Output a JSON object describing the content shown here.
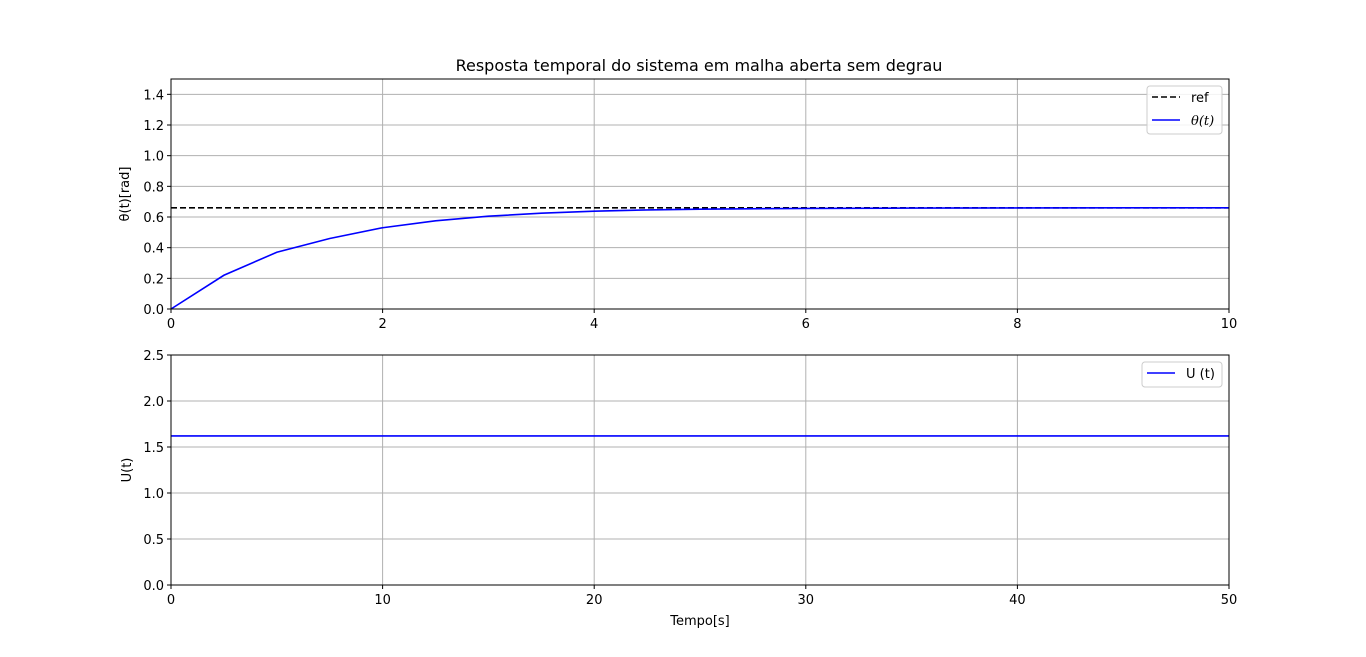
{
  "chart_data": [
    {
      "type": "line",
      "title": "Resposta temporal do sistema em malha aberta sem degrau",
      "ylabel": "θ(t)[rad]",
      "xlabel": "",
      "xlim": [
        0,
        10
      ],
      "ylim": [
        0,
        1.5
      ],
      "xticks": [
        "0",
        "2",
        "4",
        "6",
        "8",
        "10"
      ],
      "yticks": [
        "0.0",
        "0.2",
        "0.4",
        "0.6",
        "0.8",
        "1.0",
        "1.2",
        "1.4"
      ],
      "grid": true,
      "legend_position": "top-right",
      "series": [
        {
          "name": "ref",
          "style": "dashed",
          "color": "#000000",
          "x": [
            0,
            10
          ],
          "y": [
            0.66,
            0.66
          ]
        },
        {
          "name": "θ(t)",
          "style": "solid",
          "color": "#0000ff",
          "x": [
            0,
            0.5,
            1,
            1.5,
            2,
            2.5,
            3,
            3.5,
            4,
            4.5,
            5,
            6,
            7,
            8,
            9,
            10
          ],
          "y": [
            0,
            0.22,
            0.37,
            0.46,
            0.53,
            0.575,
            0.605,
            0.625,
            0.638,
            0.646,
            0.651,
            0.656,
            0.658,
            0.659,
            0.66,
            0.66
          ]
        }
      ]
    },
    {
      "type": "line",
      "title": "",
      "ylabel": "U(t)",
      "xlabel": "Tempo[s]",
      "xlim": [
        0,
        50
      ],
      "ylim": [
        0,
        2.5
      ],
      "xticks": [
        "0",
        "10",
        "20",
        "30",
        "40",
        "50"
      ],
      "yticks": [
        "0.0",
        "0.5",
        "1.0",
        "1.5",
        "2.0",
        "2.5"
      ],
      "grid": true,
      "legend_position": "top-right",
      "series": [
        {
          "name": "U (t)",
          "style": "solid",
          "color": "#0000ff",
          "x": [
            0,
            50
          ],
          "y": [
            1.62,
            1.62
          ]
        }
      ]
    }
  ],
  "colors": {
    "grid": "#b0b0b0",
    "ref": "#000000",
    "signal": "#0000ff"
  }
}
